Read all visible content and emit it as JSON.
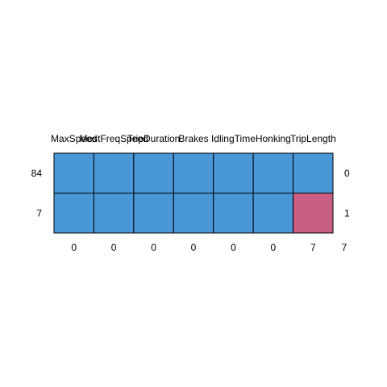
{
  "chart_data": {
    "type": "heatmap",
    "title": "",
    "columns": [
      "MaxSpeed",
      "MostFreqSpeed",
      "TripDuration",
      "Brakes",
      "IdlingTime",
      "Honking",
      "TripLength"
    ],
    "rows": [
      {
        "count": "84",
        "pattern": [
          0,
          0,
          0,
          0,
          0,
          0,
          0
        ],
        "missing": "0"
      },
      {
        "count": "7",
        "pattern": [
          0,
          0,
          0,
          0,
          0,
          0,
          1
        ],
        "missing": "1"
      }
    ],
    "column_missing": [
      "0",
      "0",
      "0",
      "0",
      "0",
      "0",
      "7"
    ],
    "total_missing": "7",
    "colors": {
      "observed": "#4a97d8",
      "missing": "#c95f82",
      "border": "#000000"
    }
  }
}
